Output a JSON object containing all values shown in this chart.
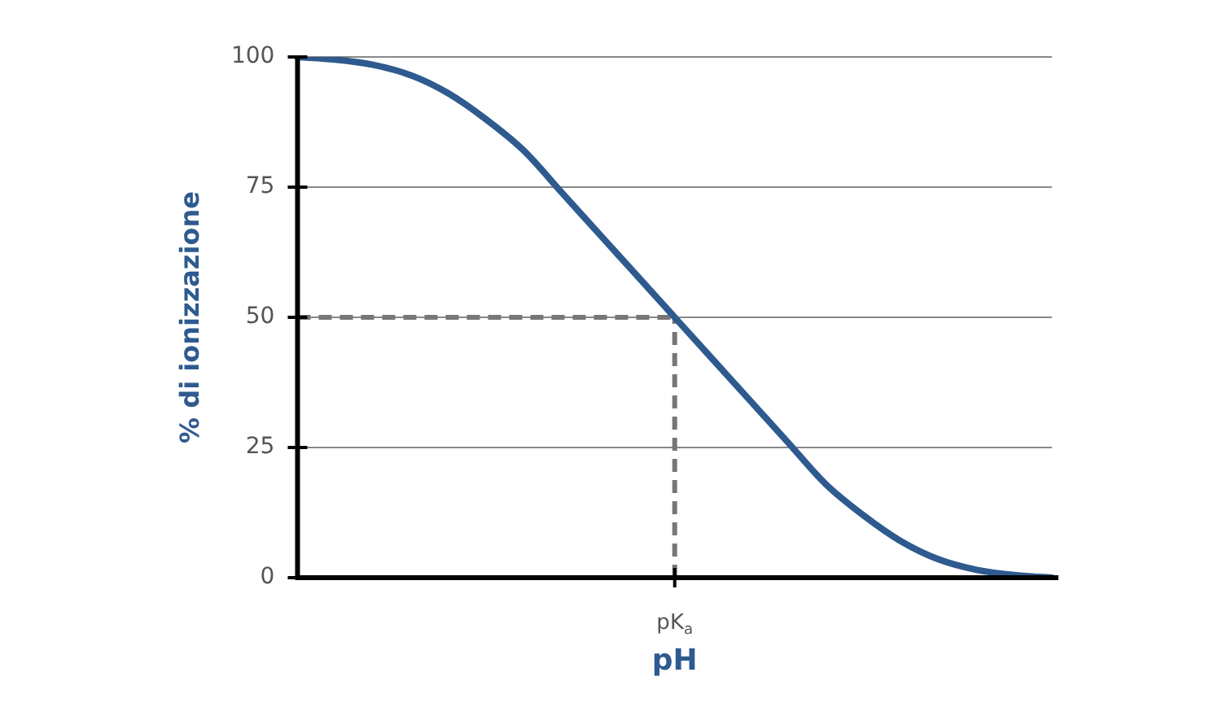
{
  "chart_data": {
    "type": "line",
    "xlabel": "pH",
    "ylabel": "% di ionizzazione",
    "categories": [
      null,
      null,
      null,
      null,
      null,
      null,
      null,
      null,
      null,
      null,
      "pK$_{a}$",
      null,
      null,
      null,
      null,
      null,
      null,
      null,
      null,
      null,
      null
    ],
    "series": [
      {
        "color": "#2e5a8f",
        "values": [
          100,
          99.5,
          98.5,
          96.5,
          93,
          88,
          82,
          74,
          66,
          58,
          50,
          42,
          34,
          26,
          18,
          12,
          7,
          3.5,
          1.5,
          0.5,
          0
        ]
      }
    ],
    "ylim": [
      0,
      100
    ],
    "yticks": [
      0,
      25,
      50,
      75,
      100
    ],
    "grid": "y",
    "legend": false,
    "marker": "none",
    "line_style": "solid",
    "ref_lines": [
      {
        "axis": "y",
        "value": 50,
        "color": "#777777",
        "line_style": "dashed"
      },
      {
        "axis": "x",
        "value": "pK$_{a}$",
        "color": "#777777",
        "line_style": "dashed"
      }
    ]
  }
}
